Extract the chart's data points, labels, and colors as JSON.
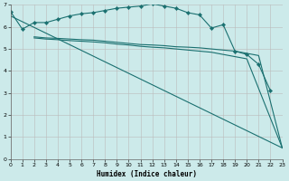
{
  "xlabel": "Humidex (Indice chaleur)",
  "bg_color": "#cceaea",
  "grid_color": "#bbbbbb",
  "line_color": "#1a7070",
  "xlim": [
    0,
    23
  ],
  "ylim": [
    0,
    7
  ],
  "xticks": [
    0,
    1,
    2,
    3,
    4,
    5,
    6,
    7,
    8,
    9,
    10,
    11,
    12,
    13,
    14,
    15,
    16,
    17,
    18,
    19,
    20,
    21,
    22,
    23
  ],
  "yticks": [
    0,
    1,
    2,
    3,
    4,
    5,
    6,
    7
  ],
  "series": [
    {
      "x": [
        0,
        1,
        2,
        3,
        4,
        5,
        6,
        7,
        8,
        9,
        10,
        11,
        12,
        13,
        14,
        15,
        16,
        17,
        18,
        19,
        20,
        21,
        22
      ],
      "y": [
        6.7,
        5.9,
        6.2,
        6.2,
        6.35,
        6.5,
        6.6,
        6.65,
        6.75,
        6.85,
        6.9,
        6.95,
        7.05,
        6.95,
        6.85,
        6.65,
        6.55,
        5.95,
        6.1,
        4.9,
        4.75,
        4.3,
        3.1
      ],
      "markers": true
    },
    {
      "x": [
        0,
        23
      ],
      "y": [
        6.5,
        0.5
      ],
      "markers": false
    },
    {
      "x": [
        2,
        3,
        4,
        5,
        6,
        7,
        8,
        9,
        10,
        11,
        12,
        13,
        14,
        15,
        16,
        17,
        18,
        19,
        20,
        21,
        23
      ],
      "y": [
        5.55,
        5.5,
        5.48,
        5.45,
        5.42,
        5.4,
        5.35,
        5.3,
        5.25,
        5.2,
        5.18,
        5.15,
        5.1,
        5.08,
        5.05,
        5.0,
        4.95,
        4.9,
        4.8,
        4.7,
        0.5
      ],
      "markers": false
    },
    {
      "x": [
        2,
        3,
        4,
        5,
        6,
        7,
        8,
        9,
        10,
        11,
        12,
        13,
        14,
        15,
        16,
        17,
        18,
        19,
        20,
        23
      ],
      "y": [
        5.5,
        5.45,
        5.42,
        5.38,
        5.35,
        5.32,
        5.28,
        5.22,
        5.18,
        5.12,
        5.08,
        5.05,
        5.0,
        4.95,
        4.9,
        4.85,
        4.75,
        4.65,
        4.55,
        0.5
      ],
      "markers": false
    }
  ]
}
